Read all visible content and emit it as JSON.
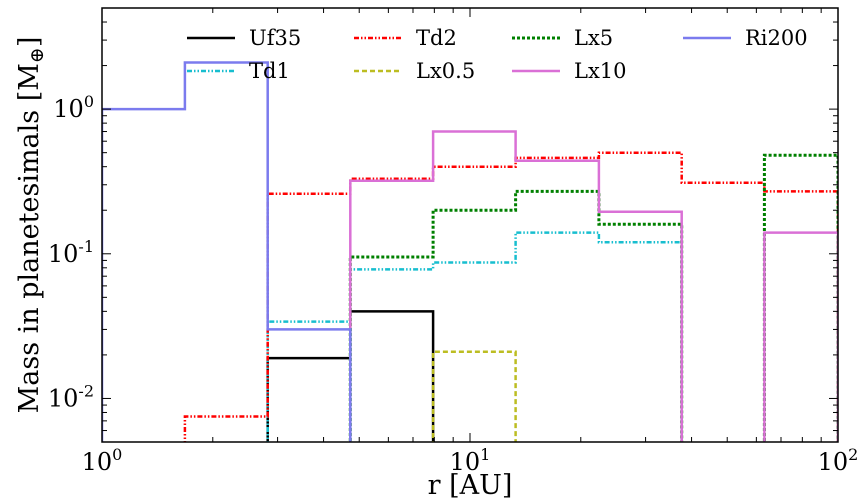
{
  "chart_data": {
    "type": "line",
    "drawstyle": "steps",
    "xscale": "log",
    "yscale": "log",
    "xlim": [
      1,
      100
    ],
    "ylim": [
      0.005,
      5
    ],
    "xlabel": "r [AU]",
    "ylabel": "Mass in planetesimals [M",
    "ylabel_sub": "⊕",
    "ylabel_close": "]",
    "xticks": [
      {
        "value": 1,
        "base": "10",
        "exp": "0"
      },
      {
        "value": 10,
        "base": "10",
        "exp": "1"
      },
      {
        "value": 100,
        "base": "10",
        "exp": "2"
      }
    ],
    "yticks": [
      {
        "value": 0.01,
        "base": "10",
        "exp": "-2"
      },
      {
        "value": 0.1,
        "base": "10",
        "exp": "-1"
      },
      {
        "value": 1,
        "base": "10",
        "exp": "0"
      }
    ],
    "grid": false,
    "legend_position": "top",
    "bin_edges": [
      1.0,
      1.68,
      2.82,
      4.73,
      7.94,
      13.3,
      22.4,
      37.6,
      63.1,
      100.0
    ],
    "series": [
      {
        "name": "Uf35",
        "color": "#000000",
        "dash": "solid",
        "width": 2.5,
        "values": [
          null,
          null,
          0.019,
          0.04,
          null,
          null,
          null,
          null,
          null
        ]
      },
      {
        "name": "Td1",
        "color": "#17becf",
        "dash": "dashdotdot",
        "width": 2.5,
        "values": [
          null,
          null,
          0.034,
          0.078,
          0.087,
          0.14,
          0.12,
          null,
          null
        ]
      },
      {
        "name": "Td2",
        "color": "#ff0000",
        "dash": "dashdotdot",
        "width": 2.5,
        "values": [
          null,
          0.0075,
          0.26,
          0.33,
          0.4,
          0.46,
          0.5,
          0.31,
          0.27
        ]
      },
      {
        "name": "Lx0.5",
        "color": "#bcbd22",
        "dash": "dashed",
        "width": 2.5,
        "values": [
          null,
          null,
          null,
          null,
          0.021,
          null,
          null,
          null,
          null
        ]
      },
      {
        "name": "Lx5",
        "color": "#008000",
        "dash": "dotted",
        "width": 3,
        "values": [
          null,
          null,
          null,
          0.095,
          0.2,
          0.27,
          0.16,
          null,
          0.48
        ]
      },
      {
        "name": "Lx10",
        "color": "#da70d6",
        "dash": "solid",
        "width": 2.5,
        "values": [
          null,
          null,
          null,
          0.32,
          0.7,
          0.44,
          0.195,
          null,
          0.14
        ]
      },
      {
        "name": "Ri200",
        "color": "#7b7bee",
        "dash": "solid",
        "width": 2.5,
        "values": [
          1.0,
          2.1,
          0.03,
          null,
          null,
          null,
          null,
          null,
          null
        ]
      }
    ]
  }
}
